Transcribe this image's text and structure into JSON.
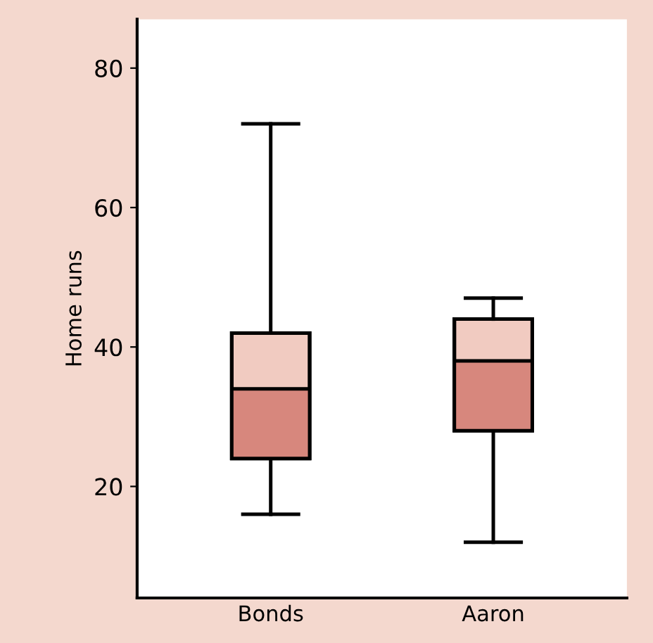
{
  "chart_data": {
    "type": "box",
    "ylabel": "Home runs",
    "categories": [
      "Bonds",
      "Aaron"
    ],
    "series": [
      {
        "color": "#f1cbc1",
        "boxes": [
          {
            "low": 16,
            "q1": 24,
            "median": 34,
            "q3": 42,
            "high": 72
          },
          {
            "low": 12,
            "q1": 28,
            "median": 38,
            "q3": 44,
            "high": 47
          }
        ]
      }
    ],
    "colors": [
      "#d7877d",
      "#d7877d"
    ],
    "ylim": [
      4,
      87
    ],
    "yticks": [
      20,
      40,
      60,
      80
    ],
    "grid": false,
    "legend": false
  }
}
